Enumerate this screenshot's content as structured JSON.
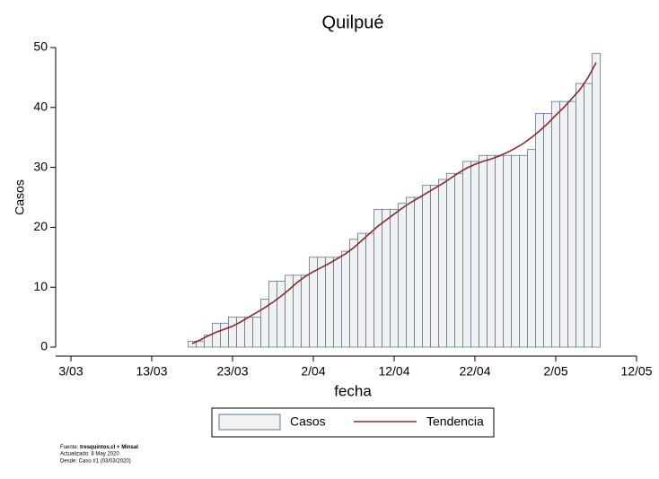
{
  "chart_data": {
    "type": "bar",
    "title": "Quilpué",
    "x_label": "fecha",
    "y_label": "Casos",
    "x": [
      "18/03",
      "19/03",
      "20/03",
      "21/03",
      "22/03",
      "23/03",
      "24/03",
      "25/03",
      "26/03",
      "27/03",
      "28/03",
      "29/03",
      "30/03",
      "31/03",
      "1/04",
      "2/04",
      "3/04",
      "4/04",
      "5/04",
      "6/04",
      "7/04",
      "8/04",
      "9/04",
      "10/04",
      "11/04",
      "12/04",
      "13/04",
      "14/04",
      "15/04",
      "16/04",
      "17/04",
      "18/04",
      "19/04",
      "20/04",
      "21/04",
      "22/04",
      "23/04",
      "24/04",
      "25/04",
      "26/04",
      "27/04",
      "28/04",
      "29/04",
      "30/04",
      "1/05",
      "2/05",
      "3/05",
      "4/05",
      "5/05",
      "6/05",
      "7/05"
    ],
    "series": [
      {
        "name": "Casos",
        "type": "bar",
        "color": "#f2f2f2",
        "edge_color": "#5a7896",
        "values": [
          1,
          1,
          2,
          4,
          4,
          5,
          5,
          5,
          5,
          8,
          11,
          11,
          12,
          12,
          12,
          15,
          15,
          15,
          15,
          16,
          18,
          19,
          19,
          23,
          23,
          23,
          24,
          25,
          25,
          27,
          27,
          28,
          29,
          29,
          31,
          31,
          32,
          32,
          32,
          32,
          32,
          32,
          33,
          39,
          39,
          41,
          41,
          41,
          44,
          44,
          49
        ]
      },
      {
        "name": "Tendencia",
        "type": "line",
        "color": "#8b2a2a",
        "values": [
          0.6,
          1.2,
          1.9,
          2.5,
          3.0,
          3.5,
          4.2,
          5.0,
          5.8,
          6.6,
          7.5,
          8.5,
          9.6,
          10.8,
          11.8,
          12.6,
          13.3,
          14.0,
          14.8,
          15.6,
          16.6,
          17.8,
          19.0,
          20.2,
          21.2,
          22.2,
          23.2,
          24.1,
          24.9,
          25.7,
          26.5,
          27.3,
          28.2,
          29.1,
          29.9,
          30.5,
          31.0,
          31.4,
          31.9,
          32.5,
          33.2,
          34.0,
          35.0,
          36.1,
          37.3,
          38.7,
          40.0,
          41.5,
          43.0,
          45.0,
          47.5
        ]
      }
    ],
    "xlim": [
      "3/03",
      "12/05"
    ],
    "xticks": [
      "3/03",
      "13/03",
      "23/03",
      "2/04",
      "12/04",
      "22/04",
      "2/05",
      "12/05"
    ],
    "ylim": [
      0,
      50
    ],
    "yticks": [
      0,
      10,
      20,
      30,
      40,
      50
    ],
    "grid": false,
    "legend": "bottom"
  },
  "footer": {
    "source_label": "Fuente:",
    "source": "tresquintos.cl + Minsal",
    "updated": "Actualizado: 8 May 2020",
    "since": "Desde: Caso #1  (03/03/2020)"
  }
}
